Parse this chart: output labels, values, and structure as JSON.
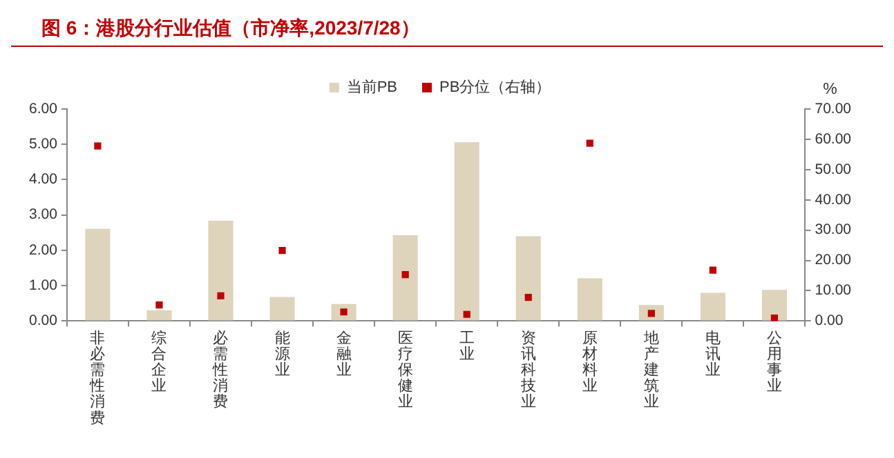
{
  "chart_data": {
    "type": "bar",
    "title": "图 6：港股分行业估值（市净率,2023/7/28）",
    "y2label": "%",
    "categories": [
      "非必需性消费",
      "综合企业",
      "必需性消费",
      "能源业",
      "金融业",
      "医疗保健业",
      "工业",
      "资讯科技业",
      "原材料业",
      "地产建筑业",
      "电讯业",
      "公用事业"
    ],
    "series": [
      {
        "name": "当前PB",
        "color": "#ded3bb",
        "values": [
          2.61,
          0.3,
          2.84,
          0.68,
          0.48,
          2.43,
          5.06,
          2.4,
          1.21,
          0.45,
          0.8,
          0.88
        ]
      },
      {
        "name": "PB分位（右轴）",
        "type": "scatter",
        "axis": "y2",
        "marker": "square",
        "color": "#c00000",
        "values": [
          57.8,
          5.3,
          8.3,
          23.3,
          3.0,
          15.3,
          2.2,
          7.8,
          58.7,
          2.5,
          16.8,
          1.0
        ]
      }
    ],
    "ylim": [
      0,
      6
    ],
    "yticks": [
      {
        "value": 0,
        "label": "0.00"
      },
      {
        "value": 1,
        "label": "1.00"
      },
      {
        "value": 2,
        "label": "2.00"
      },
      {
        "value": 3,
        "label": "3.00"
      },
      {
        "value": 4,
        "label": "4.00"
      },
      {
        "value": 5,
        "label": "5.00"
      },
      {
        "value": 6,
        "label": "6.00"
      }
    ],
    "y2lim": [
      0,
      70
    ],
    "y2ticks": [
      {
        "value": 0,
        "label": "0.00"
      },
      {
        "value": 10,
        "label": "10.00"
      },
      {
        "value": 20,
        "label": "20.00"
      },
      {
        "value": 30,
        "label": "30.00"
      },
      {
        "value": 40,
        "label": "40.00"
      },
      {
        "value": 50,
        "label": "50.00"
      },
      {
        "value": 60,
        "label": "60.00"
      },
      {
        "value": 70,
        "label": "70.00"
      }
    ],
    "grid": false,
    "legend": "top"
  }
}
